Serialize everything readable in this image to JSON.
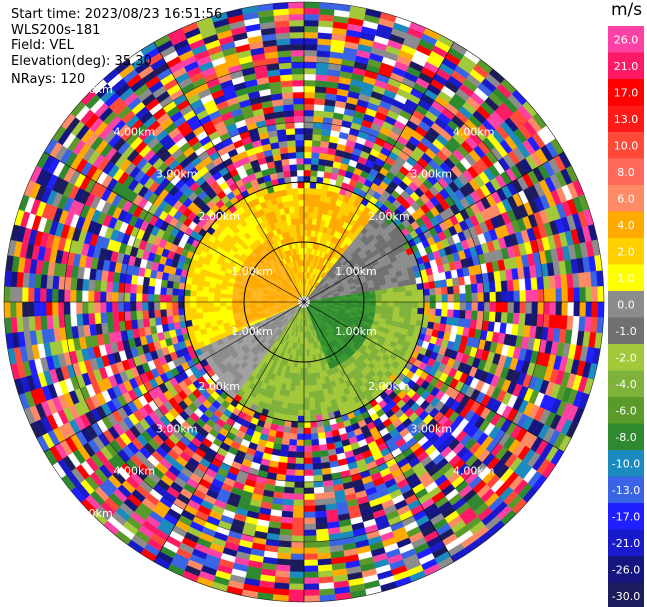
{
  "info": {
    "start_time": "Start time: 2023/08/23 16:51:56",
    "instrument": "WLS200s-181",
    "field": "Field: VEL",
    "elevation": "Elevation(deg): 35.30",
    "nrays": "NRays: 120"
  },
  "colorbar": {
    "unit": "m/s",
    "ticks": [
      "26.0",
      "21.0",
      "17.0",
      "13.0",
      "10.0",
      "8.0",
      "6.0",
      "4.0",
      "2.0",
      "1.0",
      "0.0",
      "-1.0",
      "-2.0",
      "-4.0",
      "-6.0",
      "-8.0",
      "-10.0",
      "-13.0",
      "-17.0",
      "-21.0",
      "-26.0",
      "-30.0"
    ],
    "colors": [
      "#fd41a5",
      "#ff1a66",
      "#ff0000",
      "#ff1a1a",
      "#ff4a3a",
      "#ff6a5a",
      "#ff8a66",
      "#ffaa00",
      "#ffd000",
      "#ffff00",
      "#8c8c8c",
      "#707070",
      "#a3c83a",
      "#7fb23a",
      "#5a9a2a",
      "#2f8a2f",
      "#1a8abf",
      "#3a64e6",
      "#1f1fff",
      "#1a1acd",
      "#151580",
      "#1c1c5c"
    ]
  },
  "chart_data": {
    "type": "heatmap",
    "projection": "PPI (polar, north up)",
    "field": "VEL",
    "rays": 120,
    "range_rings_labels": [
      "1.00km",
      "2.00km",
      "3.00km",
      "4.00km",
      "5.00km"
    ],
    "ring_labels_drawn": [
      {
        "text": "1.00km",
        "ring": 1,
        "az": 300
      },
      {
        "text": "1.00km",
        "ring": 1,
        "az": 60
      },
      {
        "text": "1.00km",
        "ring": 1,
        "az": 240
      },
      {
        "text": "1.00km",
        "ring": 1,
        "az": 120
      },
      {
        "text": "2.00km",
        "ring": 2,
        "az": 315
      },
      {
        "text": "2.00km",
        "ring": 2,
        "az": 45
      },
      {
        "text": "2.00km",
        "ring": 2,
        "az": 225
      },
      {
        "text": "2.00km",
        "ring": 2,
        "az": 135
      },
      {
        "text": "3.00km",
        "ring": 3,
        "az": 315
      },
      {
        "text": "3.00km",
        "ring": 3,
        "az": 45
      },
      {
        "text": "3.00km",
        "ring": 3,
        "az": 225
      },
      {
        "text": "3.00km",
        "ring": 3,
        "az": 135
      },
      {
        "text": "4.00km",
        "ring": 4,
        "az": 315
      },
      {
        "text": "4.00km",
        "ring": 4,
        "az": 45
      },
      {
        "text": "4.00km",
        "ring": 4,
        "az": 225
      },
      {
        "text": "4.00km",
        "ring": 4,
        "az": 135
      },
      {
        "text": "5.00km",
        "ring": 5,
        "az": 315
      },
      {
        "text": "5.00km",
        "ring": 5,
        "az": 225
      }
    ],
    "max_range_km": 5.0,
    "valid_range_km": 2.0,
    "velocity_range": [
      -30.0,
      26.0
    ],
    "pattern": "Inner region (<~2 km): positive velocities (yellow/orange) in the north and west, negative (green) toward the south-east, near-zero (grey) band from south-west to north-east; outer region: noise with random colours"
  }
}
